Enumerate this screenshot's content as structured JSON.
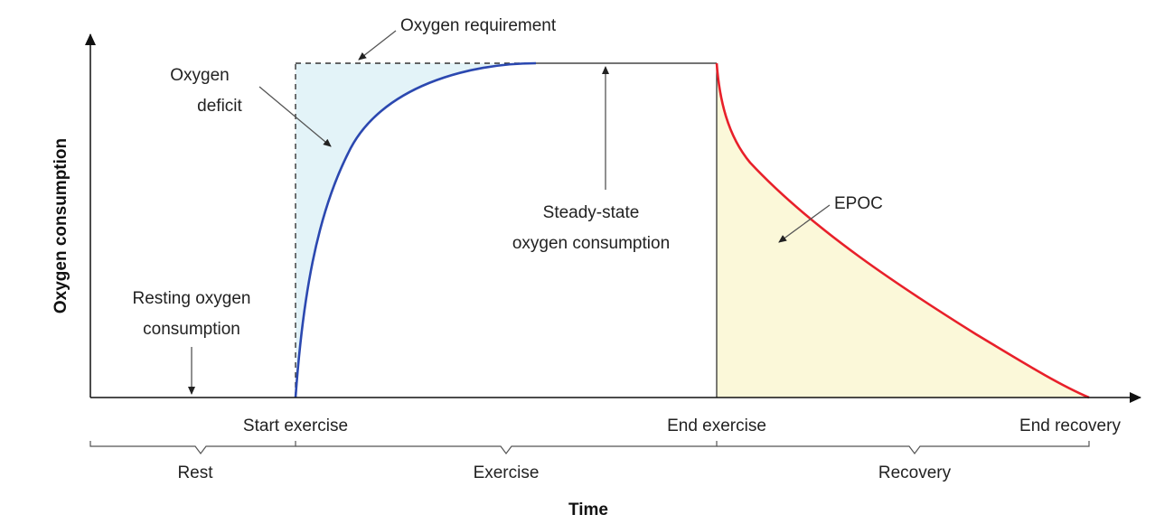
{
  "axes": {
    "y_label": "Oxygen consumption",
    "x_label": "Time"
  },
  "x_markers": {
    "start": "Start exercise",
    "end": "End exercise",
    "recovery_end": "End recovery"
  },
  "phases": {
    "rest": "Rest",
    "exercise": "Exercise",
    "recovery": "Recovery"
  },
  "annotations": {
    "requirement": "Oxygen requirement",
    "deficit_line1": "Oxygen",
    "deficit_line2": "deficit",
    "steady_line1": "Steady-state",
    "steady_line2": "oxygen consumption",
    "resting_line1": "Resting oxygen",
    "resting_line2": "consumption",
    "epoc": "EPOC"
  },
  "colors": {
    "deficit_fill": "#e3f3f8",
    "uptake_curve": "#2b48b0",
    "epoc_fill": "#fbf8d9",
    "recovery_curve": "#e8202a"
  }
}
